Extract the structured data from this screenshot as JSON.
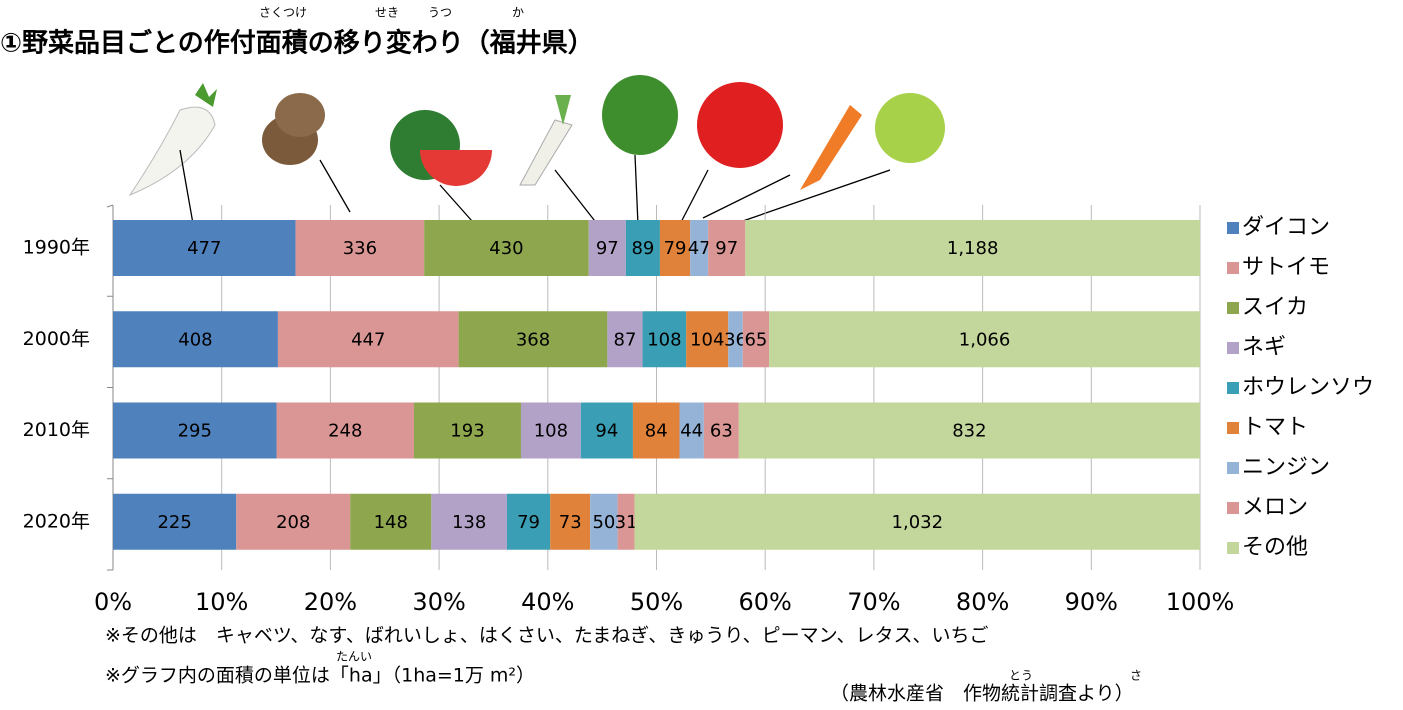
{
  "chart_data": {
    "type": "bar",
    "orientation": "horizontal",
    "stacked": "percent",
    "title": "①野菜品目ごとの作付面積の移り変わり（福井県）",
    "title_ruby": [
      "さくつけ",
      "せき",
      "うつ",
      "か"
    ],
    "categories": [
      "1990年",
      "2000年",
      "2010年",
      "2020年"
    ],
    "series": [
      {
        "name": "ダイコン",
        "color": "#4f81bd",
        "values": [
          477,
          408,
          295,
          225
        ]
      },
      {
        "name": "サトイモ",
        "color": "#da9694",
        "values": [
          336,
          447,
          248,
          208
        ]
      },
      {
        "name": "スイカ",
        "color": "#8ea64e",
        "values": [
          430,
          368,
          193,
          148
        ]
      },
      {
        "name": "ネギ",
        "color": "#b3a2c7",
        "values": [
          97,
          87,
          108,
          138
        ]
      },
      {
        "name": "ホウレンソウ",
        "color": "#3a9fb4",
        "values": [
          89,
          108,
          94,
          79
        ]
      },
      {
        "name": "トマト",
        "color": "#e0823a",
        "values": [
          79,
          104,
          84,
          73
        ]
      },
      {
        "name": "ニンジン",
        "color": "#95b3d7",
        "values": [
          47,
          36,
          44,
          50
        ]
      },
      {
        "name": "メロン",
        "color": "#da9694",
        "values": [
          97,
          65,
          63,
          31
        ]
      },
      {
        "name": "その他",
        "color": "#c3d69b",
        "values": [
          1188,
          1066,
          832,
          1032
        ],
        "value_labels": [
          "1,188",
          "1,066",
          "832",
          "1,032"
        ]
      }
    ],
    "xlim": [
      0,
      100
    ],
    "xticks": [
      {
        "value": 0,
        "label": "0%"
      },
      {
        "value": 10,
        "label": "10%"
      },
      {
        "value": 20,
        "label": "20%"
      },
      {
        "value": 30,
        "label": "30%"
      },
      {
        "value": 40,
        "label": "40%"
      },
      {
        "value": 50,
        "label": "50%"
      },
      {
        "value": 60,
        "label": "60%"
      },
      {
        "value": 70,
        "label": "70%"
      },
      {
        "value": 80,
        "label": "80%"
      },
      {
        "value": 90,
        "label": "90%"
      },
      {
        "value": 100,
        "label": "100%"
      }
    ],
    "grid": true,
    "legend": "right",
    "notes": [
      "※その他は　キャベツ、なす、ばれいしょ、はくさい、たまねぎ、きゅうり、ピーマン、レタス、いちご",
      "※グラフ内の面積の単位は「ha」（1ha=1万 m²）"
    ],
    "notes_ruby": [
      "たんい"
    ],
    "source": "（農林水産省　作物統計調査より）",
    "source_ruby": [
      "とう",
      "さ"
    ]
  }
}
